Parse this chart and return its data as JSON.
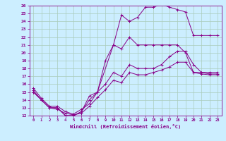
{
  "background_color": "#cceeff",
  "grid_color": "#aaccbb",
  "line_color": "#880088",
  "xlabel": "Windchill (Refroidissement éolien,°C)",
  "xlim": [
    -0.5,
    23.5
  ],
  "ylim": [
    12,
    26
  ],
  "yticks": [
    12,
    13,
    14,
    15,
    16,
    17,
    18,
    19,
    20,
    21,
    22,
    23,
    24,
    25,
    26
  ],
  "xticks": [
    0,
    1,
    2,
    3,
    4,
    5,
    6,
    7,
    8,
    9,
    10,
    11,
    12,
    13,
    14,
    15,
    16,
    17,
    18,
    19,
    20,
    21,
    22,
    23
  ],
  "series": [
    {
      "x": [
        0,
        1,
        2,
        3,
        4,
        5,
        6,
        7,
        8,
        10,
        11,
        12,
        13,
        14,
        15,
        16,
        17,
        18,
        19,
        20,
        21,
        22,
        23
      ],
      "y": [
        15,
        14,
        13,
        13,
        12,
        12,
        12.5,
        14.5,
        15,
        21,
        24.8,
        24,
        24.5,
        25.8,
        25.8,
        26.2,
        25.8,
        25.5,
        25.2,
        22.2,
        22.2,
        22.2,
        22.2
      ]
    },
    {
      "x": [
        0,
        1,
        2,
        3,
        4,
        5,
        6,
        7,
        8,
        9,
        10,
        11,
        12,
        13,
        14,
        15,
        16,
        17,
        18,
        19,
        20,
        21,
        22,
        23
      ],
      "y": [
        15,
        14,
        13,
        13,
        12,
        12,
        12.5,
        14,
        15,
        19,
        21,
        20.5,
        22,
        21,
        21,
        21,
        21,
        21,
        21,
        20,
        17.5,
        17.5,
        17.5,
        17.5
      ]
    },
    {
      "x": [
        0,
        1,
        2,
        3,
        4,
        5,
        6,
        7,
        8,
        9,
        10,
        11,
        12,
        13,
        14,
        15,
        16,
        17,
        18,
        19,
        20,
        21,
        22,
        23
      ],
      "y": [
        15.5,
        14.2,
        13.2,
        13.2,
        12.5,
        12.2,
        12.8,
        13.5,
        15,
        16,
        17.5,
        17,
        18.5,
        18,
        18,
        18,
        18.5,
        19.5,
        20.2,
        20.2,
        18.5,
        17.5,
        17.3,
        17.3
      ]
    },
    {
      "x": [
        0,
        1,
        2,
        3,
        4,
        5,
        6,
        7,
        8,
        9,
        10,
        11,
        12,
        13,
        14,
        15,
        16,
        17,
        18,
        19,
        20,
        21,
        22,
        23
      ],
      "y": [
        15.2,
        14.0,
        13.0,
        12.8,
        12.3,
        12.1,
        12.3,
        13.2,
        14.3,
        15.3,
        16.5,
        16.2,
        17.5,
        17.2,
        17.2,
        17.5,
        17.8,
        18.2,
        18.8,
        18.8,
        17.5,
        17.3,
        17.2,
        17.2
      ]
    }
  ]
}
